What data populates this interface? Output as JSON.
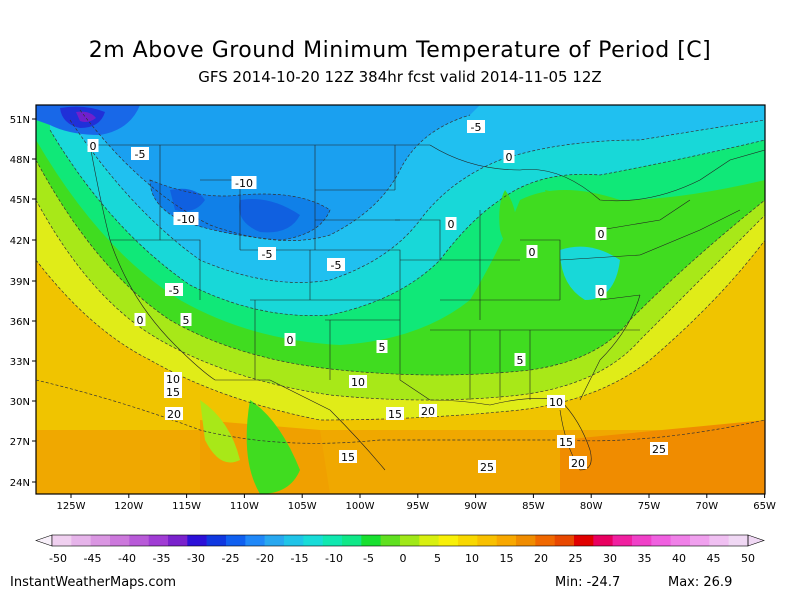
{
  "title": "2m Above Ground Minimum Temperature of Period [C]",
  "subtitle": "GFS 2014-10-20 12Z 384hr fcst valid 2014-11-05 12Z",
  "lat_labels": [
    "51N",
    "48N",
    "45N",
    "42N",
    "39N",
    "36N",
    "33N",
    "30N",
    "27N",
    "24N"
  ],
  "lon_labels": [
    "125W",
    "120W",
    "115W",
    "110W",
    "105W",
    "100W",
    "95W",
    "90W",
    "85W",
    "80W",
    "75W",
    "70W",
    "65W"
  ],
  "contour_labels": [
    {
      "text": "0"
    },
    {
      "text": "-5"
    },
    {
      "text": "-10"
    },
    {
      "text": "-10"
    },
    {
      "text": "-5"
    },
    {
      "text": "-5"
    },
    {
      "text": "-5"
    },
    {
      "text": "0"
    },
    {
      "text": "5"
    },
    {
      "text": "0"
    },
    {
      "text": "5"
    },
    {
      "text": "10"
    },
    {
      "text": "15"
    },
    {
      "text": "20"
    },
    {
      "text": "10"
    },
    {
      "text": "15"
    },
    {
      "text": "20"
    },
    {
      "text": "15"
    },
    {
      "text": "25"
    },
    {
      "text": "-5"
    },
    {
      "text": "0"
    },
    {
      "text": "0"
    },
    {
      "text": "0"
    },
    {
      "text": "0"
    },
    {
      "text": "0"
    },
    {
      "text": "5"
    },
    {
      "text": "10"
    },
    {
      "text": "15"
    },
    {
      "text": "20"
    },
    {
      "text": "25"
    }
  ],
  "colorbar": {
    "labels": [
      "-50",
      "-45",
      "-40",
      "-35",
      "-30",
      "-25",
      "-20",
      "-15",
      "-10",
      "-5",
      "0",
      "5",
      "10",
      "15",
      "20",
      "25",
      "30",
      "35",
      "40",
      "45",
      "50"
    ],
    "colors": [
      "#f0d0f0",
      "#e6b4ea",
      "#da96e2",
      "#cc78dc",
      "#b85ad8",
      "#a03cd4",
      "#7a22cc",
      "#2c10d8",
      "#1038e0",
      "#1060f0",
      "#2088f8",
      "#28a8f0",
      "#20c4e8",
      "#18dcd8",
      "#10e8b0",
      "#10e888",
      "#18e030",
      "#60e020",
      "#a0e818",
      "#d8f010",
      "#f8f008",
      "#f8d800",
      "#f8c000",
      "#f8a800",
      "#f08c00",
      "#f06800",
      "#e84800",
      "#e00000",
      "#e80060",
      "#f020a0",
      "#f040c8",
      "#f060e0",
      "#f080e8",
      "#f0a0ee",
      "#f0c0f2",
      "#f0d8f4"
    ]
  },
  "footer": {
    "source": "InstantWeatherMaps.com",
    "min": "Min: -24.7",
    "max": "Max:  26.9"
  }
}
